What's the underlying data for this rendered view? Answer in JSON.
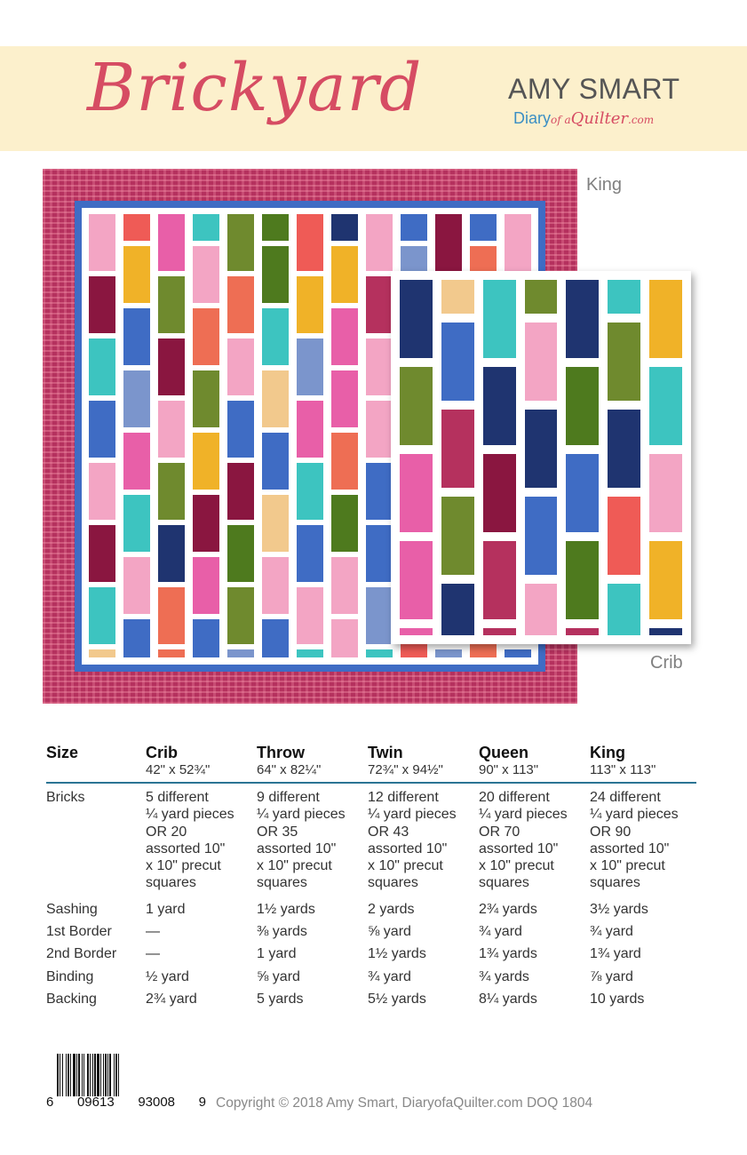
{
  "header": {
    "title": "Brickyard",
    "author": "AMY SMART",
    "site": {
      "part1": "Diary",
      "part2": "of a",
      "part3": "Quilter",
      "part4": ".com"
    }
  },
  "labels": {
    "king": "King",
    "crib": "Crib"
  },
  "colors": {
    "title_pink": "#d64c63",
    "header_band": "#fcf0cc",
    "outer_border_red": "#b5315e",
    "inner_border_blue": "#3f6cc4",
    "table_rule": "#2b7494"
  },
  "table": {
    "headers": [
      {
        "name": "Size",
        "dims": ""
      },
      {
        "name": "Crib",
        "dims": "42\" x 52¾\""
      },
      {
        "name": "Throw",
        "dims": "64\" x 82¼\""
      },
      {
        "name": "Twin",
        "dims": "72¾\" x 94½\""
      },
      {
        "name": "Queen",
        "dims": "90\" x 113\""
      },
      {
        "name": "King",
        "dims": "113\" x 113\""
      }
    ],
    "rows": [
      {
        "label": "Bricks",
        "values": [
          [
            "5 different",
            "¼ yard pieces",
            "OR 20",
            "assorted 10\"",
            "x 10\" precut",
            "squares"
          ],
          [
            "9 different",
            "¼ yard pieces",
            "OR 35",
            "assorted 10\"",
            "x 10\" precut",
            "squares"
          ],
          [
            "12 different",
            "¼ yard pieces",
            "OR 43",
            "assorted 10\"",
            "x 10\" precut",
            "squares"
          ],
          [
            "20 different",
            "¼ yard pieces",
            "OR 70",
            "assorted 10\"",
            "x 10\" precut",
            "squares"
          ],
          [
            "24 different",
            "¼ yard pieces",
            "OR 90",
            "assorted 10\"",
            "x 10\" precut",
            "squares"
          ]
        ]
      },
      {
        "label": "Sashing",
        "values": [
          "1 yard",
          "1½ yards",
          "2 yards",
          "2¾ yards",
          "3½ yards"
        ]
      },
      {
        "label": "1st Border",
        "values": [
          "—",
          "⅜ yards",
          "⅝ yard",
          "¾ yard",
          "¾ yard"
        ]
      },
      {
        "label": "2nd Border",
        "values": [
          "—",
          "1 yard",
          "1½ yards",
          "1¾ yards",
          "1¾ yard"
        ]
      },
      {
        "label": "Binding",
        "values": [
          "½ yard",
          "⅝ yard",
          "¾ yard",
          "¾  yards",
          "⅞ yard"
        ]
      },
      {
        "label": "Backing",
        "values": [
          "2¾ yard",
          "5 yards",
          "5½ yards",
          "8¼ yards",
          "10 yards"
        ]
      }
    ]
  },
  "footer": {
    "barcode_digits": [
      "6",
      "09613",
      "93008",
      "9"
    ],
    "copyright": "Copyright © 2018 Amy Smart, DiaryofaQuilter.com  DOQ 1804"
  },
  "fabric_palette": [
    "#1f3470",
    "#3dc4c0",
    "#6f8a2e",
    "#3f6cc4",
    "#4e7a1e",
    "#f0b228",
    "#f3a5c4",
    "#8a1640",
    "#ef5b56",
    "#e85fa8",
    "#7b95cc",
    "#b5315e",
    "#f2c98d",
    "#ee6e54"
  ]
}
